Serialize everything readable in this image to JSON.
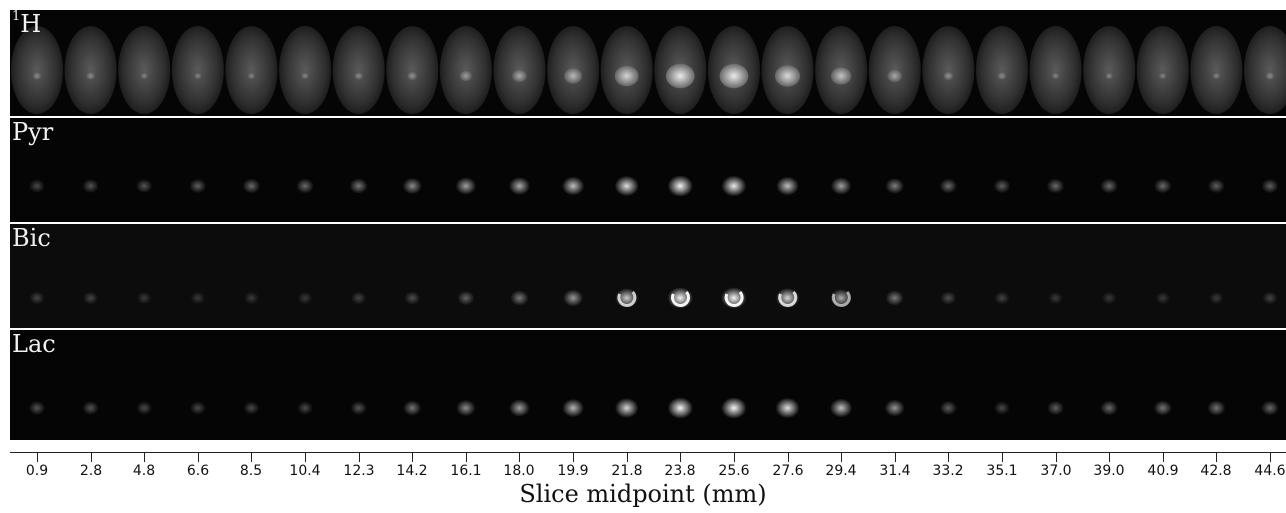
{
  "figure": {
    "rows": [
      {
        "id": "h1",
        "label_sup": "1",
        "label_main": "H"
      },
      {
        "id": "pyr",
        "label_sup": "",
        "label_main": "Pyr"
      },
      {
        "id": "bic",
        "label_sup": "",
        "label_main": "Bic"
      },
      {
        "id": "lac",
        "label_sup": "",
        "label_main": "Lac"
      }
    ],
    "x_axis": {
      "title": "Slice midpoint (mm)",
      "ticks": [
        "0.9",
        "2.8",
        "4.8",
        "6.6",
        "8.5",
        "10.4",
        "12.3",
        "14.2",
        "16.1",
        "18.0",
        "19.9",
        "21.8",
        "23.8",
        "25.6",
        "27.6",
        "29.4",
        "31.4",
        "33.2",
        "35.1",
        "37.0",
        "39.0",
        "40.9",
        "42.8",
        "44.6"
      ]
    },
    "colors": {
      "panel_background": "#050505",
      "label_text": "#f2f2f2",
      "axis": "#222222",
      "page_background": "#ffffff"
    },
    "signal": {
      "pyr": [
        0.15,
        0.2,
        0.2,
        0.25,
        0.3,
        0.3,
        0.35,
        0.45,
        0.55,
        0.6,
        0.7,
        0.85,
        0.95,
        0.9,
        0.7,
        0.55,
        0.4,
        0.3,
        0.25,
        0.3,
        0.3,
        0.3,
        0.25,
        0.25
      ],
      "bic": [
        0.1,
        0.1,
        0.05,
        0.05,
        0.05,
        0.05,
        0.1,
        0.15,
        0.25,
        0.35,
        0.5,
        0.75,
        0.95,
        0.95,
        0.8,
        0.6,
        0.35,
        0.15,
        0.1,
        0.05,
        0.05,
        0.05,
        0.05,
        0.1
      ],
      "lac": [
        0.2,
        0.2,
        0.15,
        0.15,
        0.15,
        0.15,
        0.2,
        0.35,
        0.45,
        0.55,
        0.65,
        0.8,
        0.95,
        0.95,
        0.85,
        0.7,
        0.5,
        0.25,
        0.15,
        0.25,
        0.3,
        0.35,
        0.35,
        0.3
      ]
    }
  }
}
